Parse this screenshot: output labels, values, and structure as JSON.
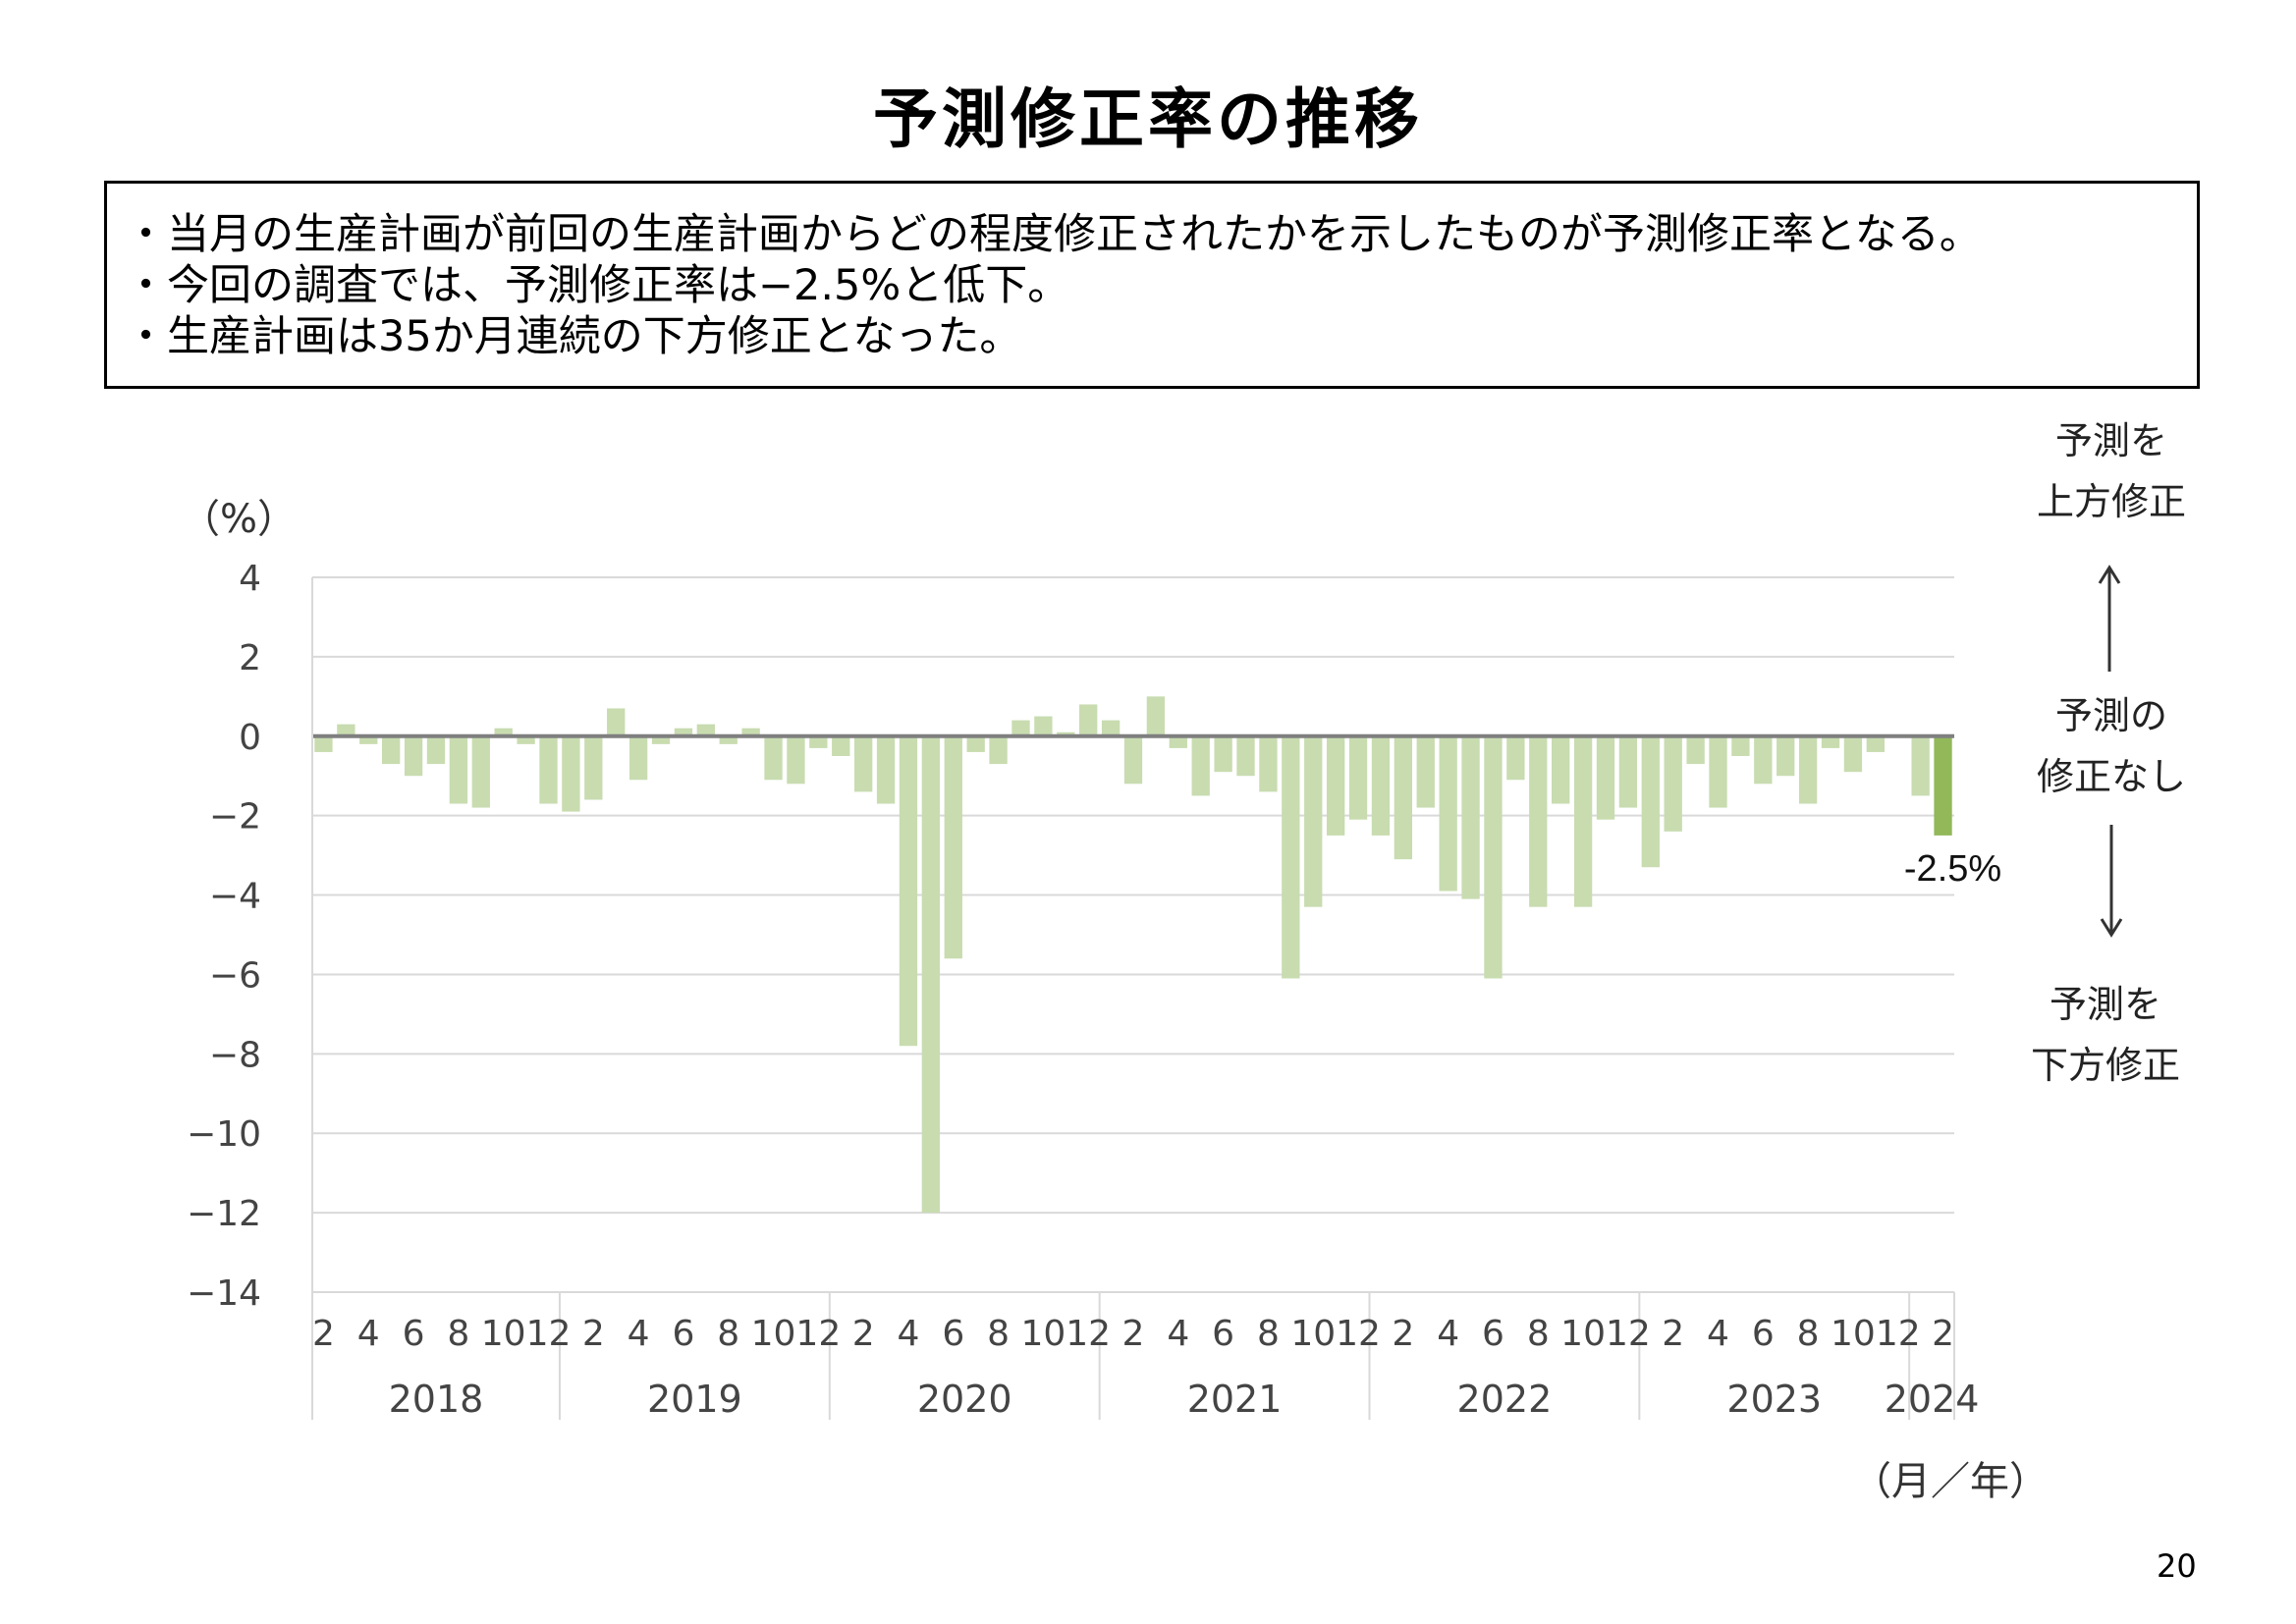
{
  "page": {
    "title": "予測修正率の推移",
    "bullets": [
      "・当月の生産計画が前回の生産計画からどの程度修正されたかを示したものが予測修正率となる。",
      "・今回の調査では、予測修正率は−2.5%と低下。",
      "・生産計画は35か月連続の下方修正となった。"
    ],
    "page_number": "20",
    "side_labels": {
      "up_1": "予測を",
      "up_2": "上方修正",
      "mid_1": "予測の",
      "mid_2": "修正なし",
      "down_1": "予測を",
      "down_2": "下方修正"
    }
  },
  "colors": {
    "bar": "#c8dcb0",
    "bar_last": "#92b859",
    "zero_line": "#7f7f7f",
    "grid": "#d9d9d9"
  },
  "chart_data": {
    "type": "bar",
    "y_unit": "（%）",
    "x_unit": "（月／年）",
    "ylim": [
      -14,
      4
    ],
    "y_ticks": [
      4,
      2,
      0,
      -2,
      -4,
      -6,
      -8,
      -10,
      -12,
      -14
    ],
    "y_tick_labels": [
      "4",
      "2",
      "0",
      "−2",
      "−4",
      "−6",
      "−8",
      "−10",
      "−12",
      "−14"
    ],
    "grid": true,
    "years": [
      {
        "label": "2018",
        "months": 11
      },
      {
        "label": "2019",
        "months": 12
      },
      {
        "label": "2020",
        "months": 12
      },
      {
        "label": "2021",
        "months": 12
      },
      {
        "label": "2022",
        "months": 12
      },
      {
        "label": "2023",
        "months": 12
      },
      {
        "label": "2024",
        "months": 2
      }
    ],
    "month_tick_labels": [
      "2",
      "4",
      "6",
      "8",
      "10",
      "12",
      "2",
      "4",
      "6",
      "8",
      "10",
      "12",
      "2",
      "4",
      "6",
      "8",
      "10",
      "12",
      "2",
      "4",
      "6",
      "8",
      "10",
      "12",
      "2",
      "4",
      "6",
      "8",
      "10",
      "12",
      "2",
      "4",
      "6",
      "8",
      "10",
      "12",
      "2"
    ],
    "values": [
      -0.4,
      0.3,
      -0.2,
      -0.7,
      -1.0,
      -0.7,
      -1.7,
      -1.8,
      0.2,
      -0.2,
      -1.7,
      -1.9,
      -1.6,
      0.7,
      -1.1,
      -0.2,
      0.2,
      0.3,
      -0.2,
      0.2,
      -1.1,
      -1.2,
      -0.3,
      -0.5,
      -1.4,
      -1.7,
      -7.8,
      -12.0,
      -5.6,
      -0.4,
      -0.7,
      0.4,
      0.5,
      0.1,
      0.8,
      0.4,
      -1.2,
      1.0,
      -0.3,
      -1.5,
      -0.9,
      -1.0,
      -1.4,
      -6.1,
      -4.3,
      -2.5,
      -2.1,
      -2.5,
      -3.1,
      -1.8,
      -3.9,
      -4.1,
      -6.1,
      -1.1,
      -4.3,
      -1.7,
      -4.3,
      -2.1,
      -1.8,
      -3.3,
      -2.4,
      -0.7,
      -1.8,
      -0.5,
      -1.2,
      -1.0,
      -1.7,
      -0.3,
      -0.9,
      -0.4,
      0.0,
      -1.5,
      -2.5
    ],
    "highlight_label": "-2.5%"
  }
}
